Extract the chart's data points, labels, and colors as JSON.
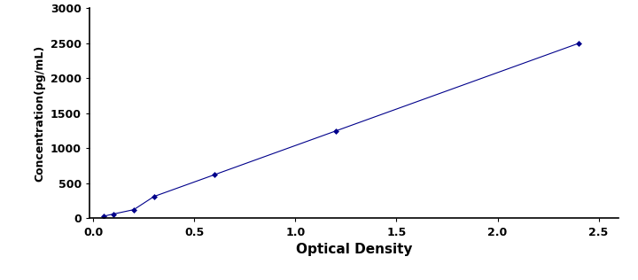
{
  "x_data": [
    0.05,
    0.1,
    0.2,
    0.3,
    0.6,
    1.2,
    2.4
  ],
  "y_data": [
    31,
    63,
    125,
    313,
    625,
    1250,
    2500
  ],
  "line_color": "#00008B",
  "marker_style": "D",
  "marker_size": 3,
  "line_style": "-",
  "line_width": 0.8,
  "xlabel": "Optical Density",
  "ylabel": "Concentration(pg/mL)",
  "xlim": [
    -0.02,
    2.6
  ],
  "ylim": [
    0,
    3000
  ],
  "xticks": [
    0,
    0.5,
    1.0,
    1.5,
    2.0,
    2.5
  ],
  "yticks": [
    0,
    500,
    1000,
    1500,
    2000,
    2500,
    3000
  ],
  "xlabel_fontsize": 11,
  "ylabel_fontsize": 9,
  "tick_fontsize": 9,
  "background_color": "#ffffff",
  "figure_background": "#ffffff",
  "border_color": "#aaaaaa"
}
